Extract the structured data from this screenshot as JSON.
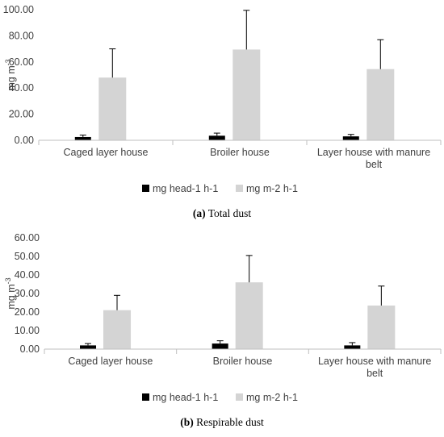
{
  "chart_data": [
    {
      "type": "bar",
      "caption_letter": "(a)",
      "caption_text": " Total dust",
      "ylabel": "mg m",
      "ylabel_sup": "-3",
      "categories": [
        [
          "Caged layer house"
        ],
        [
          "Broiler house"
        ],
        [
          "Layer house with manure",
          "belt"
        ]
      ],
      "ylim": [
        0,
        100
      ],
      "yticks": [
        "0.00",
        "20.00",
        "40.00",
        "60.00",
        "80.00",
        "100.00"
      ],
      "series": [
        {
          "name": "mg head-1 h-1",
          "values": [
            2.5,
            3.5,
            3.0
          ],
          "errors": [
            1.5,
            2.0,
            1.5
          ],
          "color": "#000000"
        },
        {
          "name": "mg m-2 h-1",
          "values": [
            48.0,
            69.5,
            54.5
          ],
          "errors": [
            22.0,
            30.0,
            22.5
          ],
          "color": "#d4d4d4"
        }
      ],
      "grid": false,
      "legend": "bottom"
    },
    {
      "type": "bar",
      "caption_letter": "(b)",
      "caption_text": " Respirable dust",
      "ylabel": "mg m",
      "ylabel_sup": "-3",
      "categories": [
        [
          "Caged layer house"
        ],
        [
          "Broiler house"
        ],
        [
          "Layer house with manure",
          "belt"
        ]
      ],
      "ylim": [
        0,
        60
      ],
      "yticks": [
        "0.00",
        "10.00",
        "20.00",
        "30.00",
        "40.00",
        "50.00",
        "60.00"
      ],
      "series": [
        {
          "name": "mg head-1 h-1",
          "values": [
            2.0,
            3.0,
            2.0
          ],
          "errors": [
            1.0,
            1.5,
            1.5
          ],
          "color": "#000000"
        },
        {
          "name": "mg m-2 h-1",
          "values": [
            21.0,
            36.0,
            23.5
          ],
          "errors": [
            8.0,
            14.5,
            10.5
          ],
          "color": "#d4d4d4"
        }
      ],
      "grid": false,
      "legend": "bottom"
    }
  ]
}
